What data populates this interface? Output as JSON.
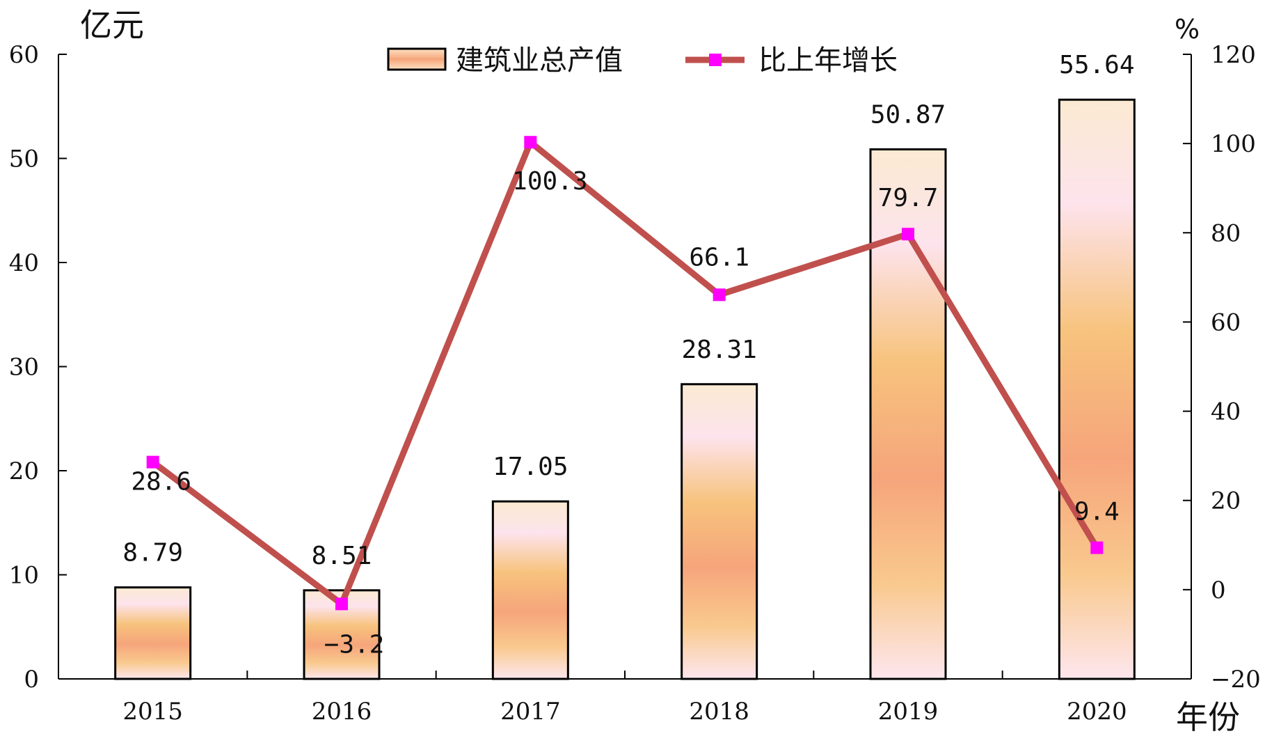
{
  "chart_data": {
    "type": "bar",
    "categories": [
      "2015",
      "2016",
      "2017",
      "2018",
      "2019",
      "2020"
    ],
    "series": [
      {
        "name": "建筑业总产值",
        "type": "bar",
        "axis": "left",
        "values": [
          8.79,
          8.51,
          17.05,
          28.31,
          50.87,
          55.64
        ],
        "labels": [
          "8.79",
          "8.51",
          "17.05",
          "28.31",
          "50.87",
          "55.64"
        ]
      },
      {
        "name": "比上年增长",
        "type": "line",
        "axis": "right",
        "values": [
          28.6,
          -3.2,
          100.3,
          66.1,
          79.7,
          9.4
        ],
        "labels": [
          "28.6",
          "-3.2",
          "100.3",
          "66.1",
          "79.7",
          "9.4"
        ],
        "color": "#c0504d",
        "marker_color": "#ff00ff"
      }
    ],
    "y_left": {
      "label": "亿元",
      "lim": [
        0,
        60
      ],
      "ticks": [
        0,
        10,
        20,
        30,
        40,
        50,
        60
      ]
    },
    "y_right": {
      "label": "%",
      "lim": [
        -20,
        120
      ],
      "ticks": [
        -20,
        0,
        20,
        40,
        60,
        80,
        100,
        120
      ]
    },
    "xlabel": "年份",
    "legend_position": "top-center",
    "grid": false,
    "colors": {
      "bar_outline": "#000000",
      "bar_light": "#fbe8d0",
      "bar_mid": "#f6b97a",
      "bar_dark": "#f5a07a",
      "bar_pink": "#fde0ea",
      "line": "#c0504d",
      "marker": "#ff00ff"
    }
  }
}
